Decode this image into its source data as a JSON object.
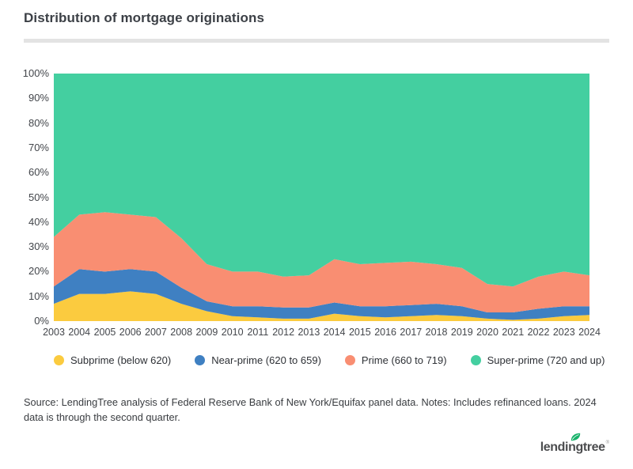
{
  "header": {
    "title": "Distribution of mortgage originations"
  },
  "chart_data": {
    "type": "area",
    "stacked": true,
    "title": "Distribution of mortgage originations",
    "xlabel": "",
    "ylabel": "",
    "unit": "%",
    "ylim": [
      0,
      100
    ],
    "grid": false,
    "legend_position": "bottom",
    "x": [
      2003,
      2004,
      2005,
      2006,
      2007,
      2008,
      2009,
      2010,
      2011,
      2012,
      2013,
      2014,
      2015,
      2016,
      2017,
      2018,
      2019,
      2020,
      2021,
      2022,
      2023,
      2024
    ],
    "y_ticks": [
      "0%",
      "10%",
      "20%",
      "30%",
      "40%",
      "50%",
      "60%",
      "70%",
      "80%",
      "90%",
      "100%"
    ],
    "series": [
      {
        "id": "subprime",
        "name": "Subprime (below 620)",
        "color": "#fbcb3f",
        "values": [
          7,
          11,
          11,
          12,
          11,
          7,
          4,
          2,
          1.5,
          1,
          1,
          3,
          2,
          1.5,
          2,
          2.5,
          2,
          1,
          0.5,
          1,
          2,
          2.5
        ]
      },
      {
        "id": "near-prime",
        "name": "Near-prime (620 to 659)",
        "color": "#3f80c2",
        "values": [
          7,
          10,
          9,
          9,
          9,
          6.5,
          4,
          4,
          4.5,
          4.5,
          4.5,
          4.5,
          4,
          4.5,
          4.5,
          4.5,
          4,
          2.5,
          3,
          4,
          4,
          3.5
        ]
      },
      {
        "id": "prime",
        "name": "Prime (660 to 719)",
        "color": "#f98e72",
        "values": [
          20,
          22,
          24,
          22,
          22,
          20,
          15,
          14,
          14,
          12.5,
          13,
          17.5,
          17,
          17.5,
          17.5,
          16,
          15.5,
          11.5,
          10.5,
          13,
          14,
          12.5
        ]
      },
      {
        "id": "super-prime",
        "name": "Super-prime (720 and up)",
        "color": "#44cfa0",
        "values": [
          66,
          57,
          56,
          57,
          58,
          66.5,
          77,
          80,
          80,
          82,
          81.5,
          75,
          77,
          76.5,
          76,
          77,
          78.5,
          85,
          86,
          82,
          80,
          81.5
        ]
      }
    ]
  },
  "footer": {
    "source_note": "Source: LendingTree analysis of Federal Reserve Bank of New York/Equifax panel data. Notes: Includes refinanced loans. 2024 data is through the second quarter.",
    "logo_text": "lendingtree",
    "logo_reg_mark": "®"
  },
  "colors": {
    "divider": "#e3e3e3",
    "title_text": "#3c4046",
    "axis_text": "#43464b",
    "leaf_green": "#17b26a"
  }
}
